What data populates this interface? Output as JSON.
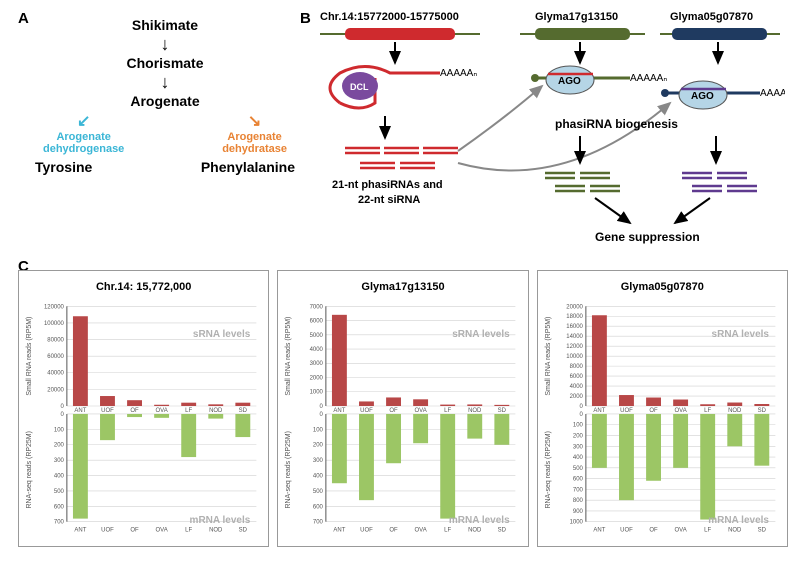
{
  "labels": {
    "A": "A",
    "B": "B",
    "C": "C"
  },
  "panelA": {
    "items": [
      "Shikimate",
      "Chorismate",
      "Arogenate"
    ],
    "left_enzyme_l1": "Arogenate",
    "left_enzyme_l2": "dehydrogenase",
    "right_enzyme_l1": "Arogenate",
    "right_enzyme_l2": "dehydratase",
    "left_product": "Tyrosine",
    "right_product": "Phenylalanine",
    "left_color": "#3bb6d6",
    "right_color": "#e88334"
  },
  "panelB": {
    "locus1": "Chr.14:15772000-15775000",
    "locus2": "Glyma17g13150",
    "locus3": "Glyma05g07870",
    "polyA": "AAAAAₙ",
    "dcl": "DCL",
    "ago": "AGO",
    "phasi_label_l1": "21-nt phasiRNAs and",
    "phasi_label_l2": "22-nt siRNA",
    "biogenesis": "phasiRNA  biogenesis",
    "suppression": "Gene suppression",
    "colors": {
      "gene1": "#cf2a2e",
      "gene2": "#556b2f",
      "gene3": "#1f3a60",
      "ago_fill": "#b5d5e6",
      "dcl_fill": "#7a4a9e",
      "frag_purple": "#5f3a8f",
      "frag_green": "#556b2f"
    }
  },
  "panelC": {
    "categories": [
      "ANT",
      "UOF",
      "OF",
      "OVA",
      "LF",
      "NOD",
      "SD"
    ],
    "top_color": "#b84747",
    "bot_color": "#9cc665",
    "grid_color": "#d0d0d0",
    "text_color": "#888888",
    "srna_text": "sRNA levels",
    "mrna_text": "mRNA levels",
    "y_top_label": "Small RNA reads (RP5M)",
    "y_bot_label": "RNA-seq reads (RP25M)",
    "charts": [
      {
        "title": "Chr.14: 15,772,000",
        "top_max": 120000,
        "top_step": 20000,
        "top_vals": [
          108000,
          12000,
          7000,
          1500,
          4000,
          2000,
          4000
        ],
        "bot_max": 700,
        "bot_step": 100,
        "bot_vals": [
          680,
          170,
          20,
          25,
          280,
          30,
          150
        ]
      },
      {
        "title": "Glyma17g13150",
        "top_max": 7000,
        "top_step": 1000,
        "top_vals": [
          6400,
          320,
          600,
          470,
          100,
          110,
          80
        ],
        "bot_max": 700,
        "bot_step": 100,
        "bot_vals": [
          450,
          560,
          320,
          190,
          680,
          160,
          200
        ]
      },
      {
        "title": "Glyma05g07870",
        "top_max": 20000,
        "top_step": 2000,
        "top_vals": [
          18200,
          2200,
          1700,
          1300,
          350,
          700,
          400
        ],
        "bot_max": 1000,
        "bot_step": 100,
        "bot_vals": [
          500,
          800,
          620,
          500,
          980,
          300,
          480
        ]
      }
    ]
  }
}
